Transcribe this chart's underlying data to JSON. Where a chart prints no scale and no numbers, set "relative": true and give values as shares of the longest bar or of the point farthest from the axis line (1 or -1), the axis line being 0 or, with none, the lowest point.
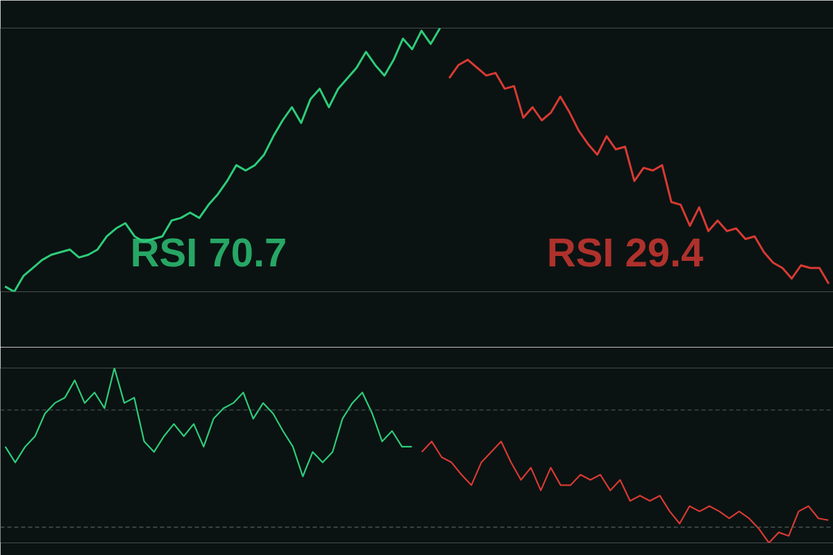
{
  "chart_data": [
    {
      "type": "line",
      "relative": true,
      "annotations": [
        "RSI 70.7",
        "RSI 29.4"
      ],
      "categories": [
        null,
        null,
        null,
        null,
        null,
        null,
        null,
        null,
        null,
        null,
        null,
        null,
        null,
        null,
        null,
        null,
        null,
        null,
        null,
        null,
        null,
        null,
        null,
        null,
        null,
        null,
        null,
        null,
        null,
        null,
        null,
        null,
        null,
        null,
        null,
        null,
        null,
        null,
        null,
        null,
        null,
        null,
        null,
        null,
        null,
        null,
        null,
        null,
        null,
        null,
        null,
        null,
        null,
        null,
        null,
        null,
        null,
        null,
        null,
        null,
        null,
        null,
        null,
        null,
        null,
        null,
        null,
        null,
        null,
        null,
        null,
        null,
        null,
        null,
        null,
        null,
        null,
        null,
        null,
        null,
        null,
        null,
        null,
        null,
        null,
        null,
        null,
        null,
        null,
        null
      ],
      "series": [
        {
          "color": "#2ecc7a",
          "values": [
            0.02,
            0,
            0.06,
            0.09,
            0.12,
            0.14,
            0.15,
            0.16,
            0.13,
            0.14,
            0.16,
            0.21,
            0.24,
            0.26,
            0.21,
            0.19,
            0.2,
            0.21,
            0.27,
            0.28,
            0.3,
            0.28,
            0.33,
            0.37,
            0.42,
            0.48,
            0.46,
            0.48,
            0.52,
            0.59,
            0.65,
            0.7,
            0.64,
            0.73,
            0.77,
            0.7,
            0.77,
            0.81,
            0.85,
            0.91,
            0.86,
            0.82,
            0.88,
            0.96,
            0.92,
            0.99,
            0.94,
            1.0,
            null,
            null,
            null,
            null,
            null,
            null,
            null,
            null,
            null,
            null,
            null,
            null,
            null,
            null,
            null,
            null,
            null,
            null,
            null,
            null,
            null,
            null,
            null,
            null,
            null,
            null,
            null,
            null,
            null,
            null,
            null,
            null,
            null,
            null,
            null,
            null,
            null,
            null,
            null,
            null,
            null,
            null
          ]
        },
        {
          "color": "#d83a33",
          "values": [
            null,
            null,
            null,
            null,
            null,
            null,
            null,
            null,
            null,
            null,
            null,
            null,
            null,
            null,
            null,
            null,
            null,
            null,
            null,
            null,
            null,
            null,
            null,
            null,
            null,
            null,
            null,
            null,
            null,
            null,
            null,
            null,
            null,
            null,
            null,
            null,
            null,
            null,
            null,
            null,
            null,
            null,
            null,
            null,
            null,
            null,
            null,
            null,
            0.81,
            0.86,
            0.88,
            0.85,
            0.82,
            0.83,
            0.77,
            0.78,
            0.66,
            0.7,
            0.65,
            0.68,
            0.74,
            0.68,
            0.61,
            0.56,
            0.52,
            0.59,
            0.54,
            0.55,
            0.42,
            0.47,
            0.46,
            0.48,
            0.34,
            0.33,
            0.25,
            0.32,
            0.23,
            0.27,
            0.23,
            0.24,
            0.2,
            0.21,
            0.15,
            0.11,
            0.09,
            0.05,
            0.1,
            0.09,
            0.09,
            0.03
          ]
        }
      ]
    },
    {
      "type": "line",
      "relative": true,
      "ref_lines": [
        {
          "axis": "y",
          "value": 0.76,
          "color": "#55635f",
          "line_style": "dashed"
        },
        {
          "axis": "y",
          "value": 0.09,
          "color": "#55635f",
          "line_style": "dashed"
        }
      ],
      "categories": [
        null,
        null,
        null,
        null,
        null,
        null,
        null,
        null,
        null,
        null,
        null,
        null,
        null,
        null,
        null,
        null,
        null,
        null,
        null,
        null,
        null,
        null,
        null,
        null,
        null,
        null,
        null,
        null,
        null,
        null,
        null,
        null,
        null,
        null,
        null,
        null,
        null,
        null,
        null,
        null,
        null,
        null,
        null,
        null,
        null,
        null,
        null,
        null,
        null,
        null,
        null,
        null,
        null,
        null,
        null,
        null,
        null,
        null,
        null,
        null,
        null,
        null,
        null,
        null,
        null,
        null,
        null,
        null,
        null,
        null,
        null,
        null,
        null,
        null,
        null,
        null,
        null,
        null,
        null,
        null,
        null,
        null,
        null,
        null
      ],
      "series": [
        {
          "color": "#2ecc7a",
          "values": [
            0.55,
            0.46,
            0.55,
            0.61,
            0.74,
            0.8,
            0.83,
            0.93,
            0.8,
            0.86,
            0.77,
            1.0,
            0.8,
            0.83,
            0.58,
            0.52,
            0.61,
            0.68,
            0.61,
            0.68,
            0.55,
            0.71,
            0.77,
            0.8,
            0.86,
            0.71,
            0.8,
            0.74,
            0.64,
            0.55,
            0.38,
            0.52,
            0.46,
            0.52,
            0.71,
            0.8,
            0.86,
            0.74,
            0.58,
            0.64,
            0.55,
            0.55,
            null,
            null,
            null,
            null,
            null,
            null,
            null,
            null,
            null,
            null,
            null,
            null,
            null,
            null,
            null,
            null,
            null,
            null,
            null,
            null,
            null,
            null,
            null,
            null,
            null,
            null,
            null,
            null,
            null,
            null,
            null,
            null,
            null,
            null,
            null,
            null,
            null,
            null,
            null,
            null,
            null,
            null
          ]
        },
        {
          "color": "#d83a33",
          "values": [
            null,
            null,
            null,
            null,
            null,
            null,
            null,
            null,
            null,
            null,
            null,
            null,
            null,
            null,
            null,
            null,
            null,
            null,
            null,
            null,
            null,
            null,
            null,
            null,
            null,
            null,
            null,
            null,
            null,
            null,
            null,
            null,
            null,
            null,
            null,
            null,
            null,
            null,
            null,
            null,
            null,
            null,
            0.52,
            0.58,
            0.49,
            0.46,
            0.39,
            0.33,
            0.46,
            0.52,
            0.58,
            0.46,
            0.36,
            0.43,
            0.3,
            0.43,
            0.33,
            0.33,
            0.39,
            0.36,
            0.39,
            0.3,
            0.36,
            0.24,
            0.27,
            0.24,
            0.27,
            0.18,
            0.11,
            0.21,
            0.18,
            0.21,
            0.18,
            0.14,
            0.18,
            0.14,
            0.08,
            0,
            0.06,
            0.04,
            0.18,
            0.21,
            0.14,
            0.13
          ]
        }
      ]
    }
  ]
}
